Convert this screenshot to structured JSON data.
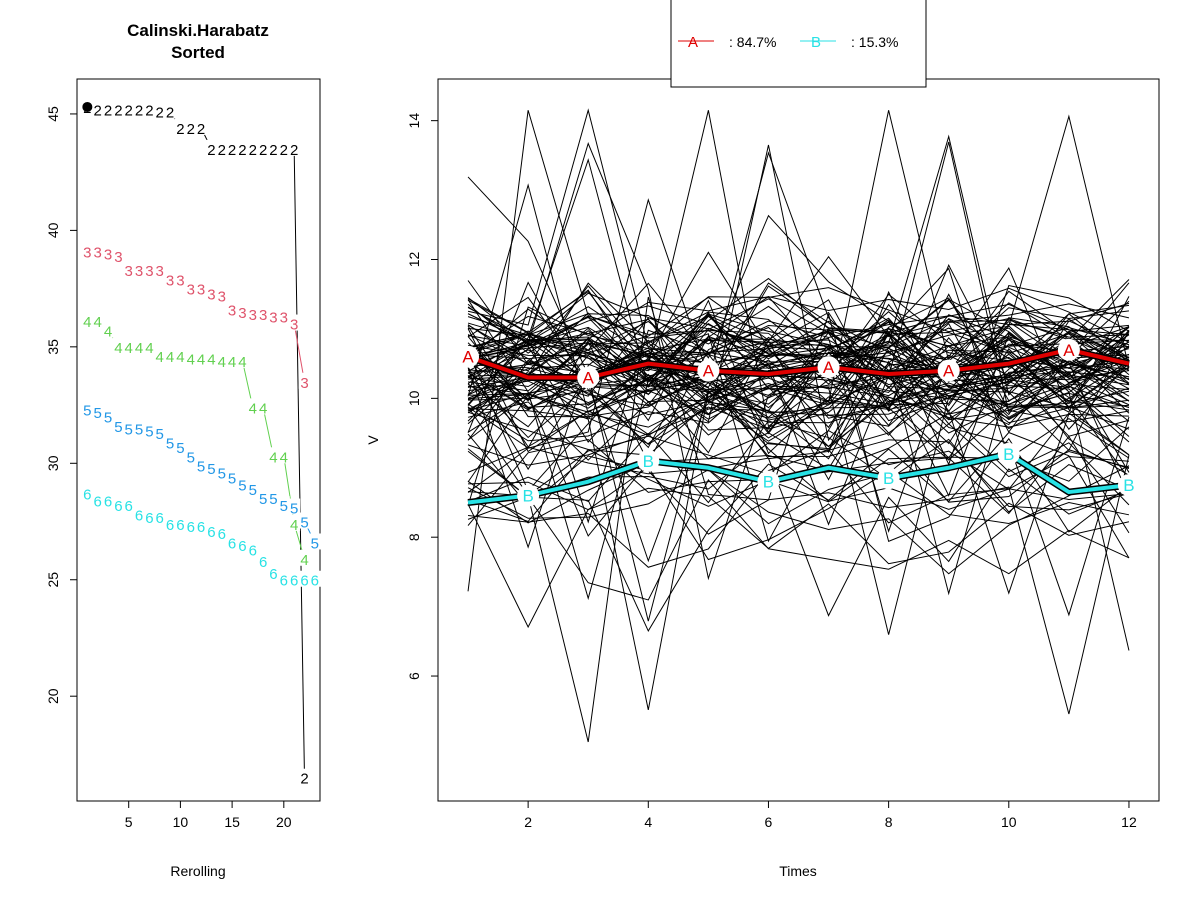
{
  "chart_data": [
    {
      "type": "line",
      "title": "Calinski.Harabatz",
      "subtitle": "Sorted",
      "xlabel": "Rerolling",
      "ylabel": "",
      "xlim": [
        0,
        23.5
      ],
      "ylim": [
        15.5,
        46.5
      ],
      "xticks": [
        "5",
        "10",
        "15",
        "20"
      ],
      "yticks": [
        "20",
        "25",
        "30",
        "35",
        "40",
        "45"
      ],
      "series": [
        {
          "label_char": "2",
          "color": "#000000",
          "x": [
            1,
            2,
            3,
            4,
            5,
            6,
            7,
            8,
            9,
            10,
            11,
            12,
            13,
            14,
            15,
            16,
            17,
            18,
            19,
            20,
            21,
            22
          ],
          "values": [
            45.3,
            45.2,
            45.2,
            45.2,
            45.2,
            45.2,
            45.2,
            45.1,
            45.1,
            44.4,
            44.4,
            44.4,
            43.5,
            43.5,
            43.5,
            43.5,
            43.5,
            43.5,
            43.5,
            43.5,
            43.5,
            16.5
          ]
        },
        {
          "label_char": "3",
          "color": "#DF536B",
          "x": [
            1,
            2,
            3,
            4,
            5,
            6,
            7,
            8,
            9,
            10,
            11,
            12,
            13,
            14,
            15,
            16,
            17,
            18,
            19,
            20,
            21,
            22
          ],
          "values": [
            39.1,
            39.1,
            39.0,
            38.9,
            38.3,
            38.3,
            38.3,
            38.3,
            37.9,
            37.9,
            37.5,
            37.5,
            37.3,
            37.2,
            36.6,
            36.5,
            36.4,
            36.4,
            36.3,
            36.3,
            36.0,
            33.5
          ]
        },
        {
          "label_char": "4",
          "color": "#61D04F",
          "x": [
            1,
            2,
            3,
            4,
            5,
            6,
            7,
            8,
            9,
            10,
            11,
            12,
            13,
            14,
            15,
            16,
            17,
            18,
            19,
            20,
            21,
            22
          ],
          "values": [
            36.1,
            36.1,
            35.7,
            35.0,
            35.0,
            35.0,
            35.0,
            34.6,
            34.6,
            34.6,
            34.5,
            34.5,
            34.5,
            34.4,
            34.4,
            34.4,
            32.4,
            32.4,
            30.3,
            30.3,
            27.4,
            25.9
          ]
        },
        {
          "label_char": "5",
          "color": "#2297E6",
          "x": [
            1,
            2,
            3,
            4,
            5,
            6,
            7,
            8,
            9,
            10,
            11,
            12,
            13,
            14,
            15,
            16,
            17,
            18,
            19,
            20,
            21,
            22,
            23
          ],
          "values": [
            32.3,
            32.2,
            32.0,
            31.6,
            31.5,
            31.5,
            31.4,
            31.3,
            30.9,
            30.7,
            30.3,
            29.9,
            29.8,
            29.6,
            29.4,
            29.1,
            28.9,
            28.5,
            28.5,
            28.2,
            28.1,
            27.5,
            26.6
          ]
        },
        {
          "label_char": "6",
          "color": "#28E2E5",
          "x": [
            1,
            2,
            3,
            4,
            5,
            6,
            7,
            8,
            9,
            10,
            11,
            12,
            13,
            14,
            15,
            16,
            17,
            18,
            19,
            20,
            21,
            22,
            23
          ],
          "values": [
            28.7,
            28.4,
            28.4,
            28.2,
            28.2,
            27.8,
            27.7,
            27.7,
            27.4,
            27.4,
            27.3,
            27.3,
            27.1,
            27.0,
            26.6,
            26.5,
            26.3,
            25.8,
            25.3,
            25.0,
            25.0,
            25.0,
            25.0
          ]
        }
      ]
    },
    {
      "type": "line",
      "title": "",
      "xlabel": "Times",
      "ylabel": "V",
      "xlim": [
        0.5,
        12.5
      ],
      "ylim": [
        4.2,
        14.6
      ],
      "xticks": [
        "2",
        "4",
        "6",
        "8",
        "10",
        "12"
      ],
      "yticks": [
        "6",
        "8",
        "10",
        "12",
        "14"
      ],
      "legend": {
        "position": "top",
        "entries": [
          {
            "marker": "A",
            "text": ": 84.7%",
            "color": "#DF0000"
          },
          {
            "marker": "B",
            "text": ": 15.3%",
            "color": "#28E2E5"
          }
        ]
      },
      "background_series_count": 110,
      "x": [
        1,
        2,
        3,
        4,
        5,
        6,
        7,
        8,
        9,
        10,
        11,
        12
      ],
      "series": [
        {
          "name": "A",
          "color": "#DF0000",
          "values": [
            10.6,
            10.3,
            10.3,
            10.5,
            10.4,
            10.35,
            10.45,
            10.35,
            10.4,
            10.5,
            10.7,
            10.5
          ]
        },
        {
          "name": "B",
          "color": "#28E2E5",
          "values": [
            8.5,
            8.6,
            8.8,
            9.1,
            9.0,
            8.8,
            9.0,
            8.85,
            9.0,
            9.2,
            8.65,
            8.75
          ]
        }
      ]
    }
  ]
}
